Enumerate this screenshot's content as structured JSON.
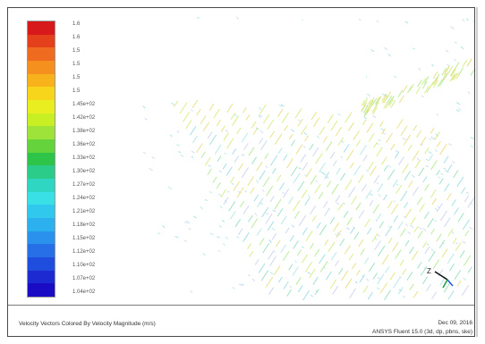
{
  "legend": {
    "colors": [
      "#d7191c",
      "#e4401c",
      "#ef6b1f",
      "#f5901f",
      "#f8b21c",
      "#f6d51a",
      "#e8ee1f",
      "#c7ef24",
      "#9ee33a",
      "#64d33c",
      "#2ec44a",
      "#2bcc8a",
      "#2fd7c2",
      "#39e0e6",
      "#30c8ec",
      "#2db0ee",
      "#2a92ec",
      "#266fe6",
      "#1f4ddd",
      "#1d2ad2",
      "#1a0cc4"
    ],
    "labels": [
      "1.6",
      "1.6",
      "1.5",
      "1.5",
      "1.5",
      "1.5",
      "1.45e+02",
      "1.42e+02",
      "1.38e+02",
      "1.36e+02",
      "1.33e+02",
      "1.30e+02",
      "1.27e+02",
      "1.24e+02",
      "1.21e+02",
      "1.18e+02",
      "1.15e+02",
      "1.12e+02",
      "1.10e+02",
      "1.07e+02",
      "1.04e+02"
    ]
  },
  "footer": {
    "title": "Velocity Vectors Colored By Velocity Magnitude (m/s)",
    "date": "Dec 09, 2016",
    "version": "ANSYS Fluent 15.0 (3d, dp, pbns, ske)"
  },
  "triad": {
    "z_label": "Z"
  }
}
